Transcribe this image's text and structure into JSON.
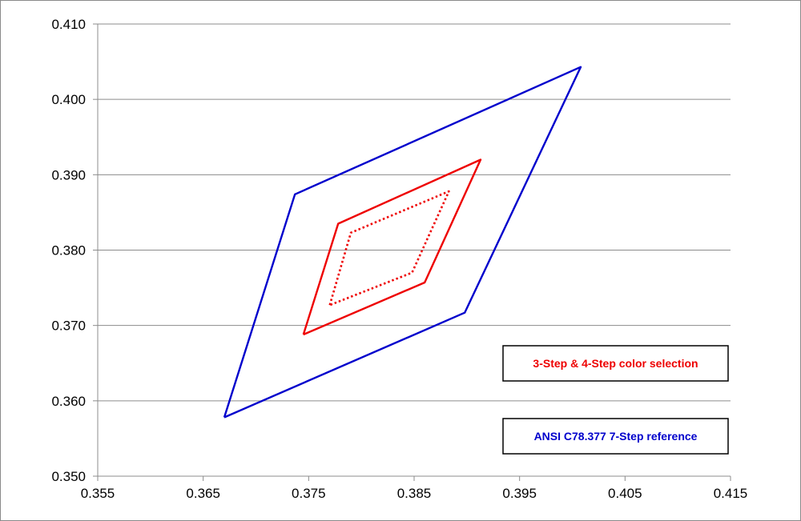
{
  "chart_data": {
    "type": "line",
    "title": "",
    "xlabel": "",
    "ylabel": "",
    "xlim": [
      0.355,
      0.415
    ],
    "ylim": [
      0.35,
      0.41
    ],
    "x_ticks": [
      "0.355",
      "0.365",
      "0.375",
      "0.385",
      "0.395",
      "0.405",
      "0.415"
    ],
    "y_ticks": [
      "0.410",
      "0.400",
      "0.390",
      "0.380",
      "0.370",
      "0.360",
      "0.350"
    ],
    "x_tick_values": [
      0.355,
      0.365,
      0.375,
      0.385,
      0.395,
      0.405,
      0.415
    ],
    "y_tick_values": [
      0.41,
      0.4,
      0.39,
      0.38,
      0.37,
      0.36,
      0.35
    ],
    "grid": "horizontal",
    "legend_placement": "bottom-right",
    "series": [
      {
        "legend_label": "ANSI C78.377 7-Step reference",
        "color": "#0000cc",
        "style": "solid",
        "points": [
          [
            0.367,
            0.3578
          ],
          [
            0.3737,
            0.3874
          ],
          [
            0.4008,
            0.4043
          ],
          [
            0.3898,
            0.3717
          ],
          [
            0.367,
            0.3578
          ]
        ]
      },
      {
        "legend_label": "3-Step & 4-Step color selection",
        "color": "#ee0000",
        "style": "solid",
        "points": [
          [
            0.3745,
            0.3688
          ],
          [
            0.3778,
            0.3835
          ],
          [
            0.3913,
            0.392
          ],
          [
            0.386,
            0.3757
          ],
          [
            0.3745,
            0.3688
          ]
        ]
      },
      {
        "color": "#ee0000",
        "style": "dotted",
        "points": [
          [
            0.377,
            0.3727
          ],
          [
            0.379,
            0.3823
          ],
          [
            0.3883,
            0.3878
          ],
          [
            0.3848,
            0.377
          ],
          [
            0.377,
            0.3727
          ]
        ]
      }
    ]
  }
}
